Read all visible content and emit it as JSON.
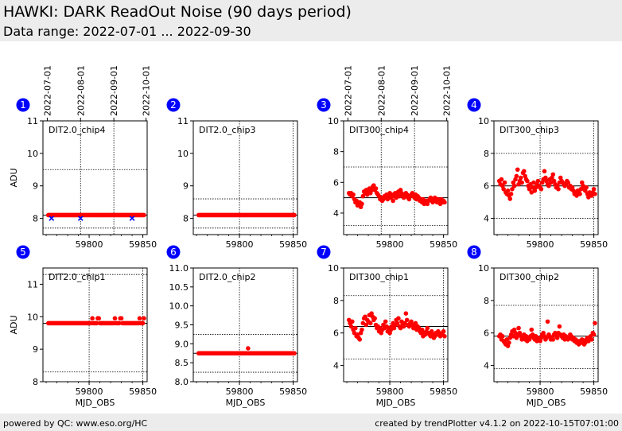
{
  "header": {
    "title": "HAWKI: DARK ReadOut Noise (90 days period)",
    "subtitle": "Data range: 2022-07-01 ... 2022-09-30"
  },
  "footer": {
    "left": "powered by QC: www.eso.org/HC",
    "right": "created by trendPlotter v4.1.2 on 2022-10-15T07:01:00"
  },
  "colors": {
    "data": "#ff0000",
    "outlier": "#0000ff",
    "badge": "#0000ff",
    "header_bg": "#ececec"
  },
  "chart_data": [
    {
      "type": "scatter",
      "index": "1",
      "label": "DIT2.0_chip4",
      "ylabel": "ADU",
      "xlabel": "",
      "xlim": [
        59757,
        59854
      ],
      "ylim": [
        7.5,
        11
      ],
      "yticks": [
        "8",
        "9",
        "10",
        "11"
      ],
      "xticks": [
        "59800",
        "59850"
      ],
      "date_ticks": [
        "2022-07-01",
        "2022-08-01",
        "2022-09-01",
        "2022-10-01"
      ],
      "reference_line": 8.1,
      "threshold_lines": [
        9.5,
        7.7
      ],
      "series": [
        {
          "start": 59762,
          "end": 59851,
          "values": [
            8.1,
            8.1,
            8.1,
            8.1,
            8.1,
            8.1,
            8.1,
            8.1,
            8.1,
            8.1,
            8.1,
            8.1,
            8.1,
            8.1,
            8.1,
            8.1,
            8.1,
            8.1,
            8.1,
            8.1,
            8.1,
            8.1,
            8.1,
            8.1,
            8.1,
            8.1,
            8.1,
            8.1,
            8.1,
            8.1,
            8.1,
            8.1,
            8.1,
            8.1,
            8.1,
            8.1,
            8.1,
            8.1,
            8.1,
            8.1,
            8.1,
            8.1,
            8.1,
            8.1,
            8.1,
            8.1,
            8.1,
            8.1,
            8.1,
            8.1,
            8.1,
            8.1,
            8.1,
            8.1,
            8.1,
            8.1,
            8.1,
            8.1,
            8.1,
            8.1,
            8.1,
            8.1,
            8.1,
            8.1,
            8.1,
            8.1,
            8.1,
            8.1,
            8.1,
            8.1,
            8.1,
            8.1,
            8.1,
            8.1,
            8.1,
            8.1,
            8.1,
            8.1,
            8.1,
            8.1,
            8.1,
            8.1,
            8.1,
            8.1,
            8.1,
            8.1,
            8.1,
            8.1,
            8.1,
            8.1
          ]
        }
      ],
      "outliers": [
        {
          "x": 59765,
          "y": 8.0
        },
        {
          "x": 59792,
          "y": 8.0
        },
        {
          "x": 59840,
          "y": 8.0
        }
      ]
    },
    {
      "type": "scatter",
      "index": "2",
      "label": "DIT2.0_chip3",
      "ylabel": "",
      "xlabel": "",
      "xlim": [
        59757,
        59854
      ],
      "ylim": [
        7.5,
        11
      ],
      "yticks": [
        "8",
        "9",
        "10",
        "11"
      ],
      "xticks": [
        "59800",
        "59850"
      ],
      "reference_line": 8.1,
      "threshold_lines": [
        8.6,
        7.7
      ],
      "series": [
        {
          "start": 59762,
          "end": 59851,
          "values": [
            8.1,
            8.1,
            8.1,
            8.1,
            8.1,
            8.1,
            8.1,
            8.1,
            8.1,
            8.1,
            8.1,
            8.1,
            8.1,
            8.1,
            8.1,
            8.1,
            8.1,
            8.1,
            8.1,
            8.1,
            8.1,
            8.1,
            8.1,
            8.1,
            8.1,
            8.1,
            8.1,
            8.1,
            8.1,
            8.1,
            8.1,
            8.1,
            8.1,
            8.1,
            8.1,
            8.1,
            8.1,
            8.1,
            8.1,
            8.1,
            8.1,
            8.1,
            8.1,
            8.1,
            8.1,
            8.1,
            8.1,
            8.1,
            8.1,
            8.1,
            8.1,
            8.1,
            8.1,
            8.1,
            8.1,
            8.1,
            8.1,
            8.1,
            8.1,
            8.1,
            8.1,
            8.1,
            8.1,
            8.1,
            8.1,
            8.1,
            8.1,
            8.1,
            8.1,
            8.1,
            8.1,
            8.1,
            8.1,
            8.1,
            8.1,
            8.1,
            8.1,
            8.1,
            8.1,
            8.1,
            8.1,
            8.1,
            8.1,
            8.1,
            8.1,
            8.1,
            8.1,
            8.1,
            8.1,
            8.1
          ]
        }
      ],
      "outliers": []
    },
    {
      "type": "scatter",
      "index": "3",
      "label": "DIT300_chip4",
      "ylabel": "",
      "xlabel": "",
      "xlim": [
        59757,
        59854
      ],
      "ylim": [
        2.6,
        10
      ],
      "yticks": [
        "4",
        "6",
        "8",
        "10"
      ],
      "xticks": [
        "59800",
        "59850"
      ],
      "date_ticks": [
        "2022-07-01",
        "2022-08-01",
        "2022-09-01",
        "2022-10-01"
      ],
      "reference_line": 5.0,
      "threshold_lines": [
        7.0,
        3.2
      ],
      "series": [
        {
          "start": 59762,
          "end": 59851,
          "values": [
            5.3,
            5.2,
            5.3,
            5.1,
            5.2,
            4.9,
            4.7,
            4.8,
            4.5,
            4.6,
            4.7,
            4.4,
            4.6,
            5.1,
            5.4,
            5.3,
            5.5,
            5.2,
            5.4,
            5.6,
            5.3,
            5.5,
            5.7,
            5.8,
            5.5,
            5.6,
            5.3,
            5.2,
            5.1,
            4.9,
            5.0,
            4.8,
            4.9,
            5.1,
            5.0,
            5.2,
            4.9,
            5.1,
            5.3,
            5.0,
            5.2,
            4.8,
            5.1,
            5.3,
            5.0,
            5.2,
            5.4,
            5.1,
            5.5,
            5.3,
            5.2,
            5.0,
            5.1,
            5.3,
            5.2,
            5.0,
            4.9,
            5.1,
            5.2,
            5.3,
            5.1,
            5.0,
            5.2,
            4.9,
            5.1,
            5.0,
            4.8,
            4.9,
            4.7,
            4.9,
            4.6,
            4.7,
            4.8,
            4.6,
            4.8,
            4.9,
            5.0,
            4.8,
            4.7,
            4.9,
            5.0,
            4.8,
            4.7,
            4.9,
            4.8,
            4.6,
            4.9,
            4.7,
            4.8,
            4.7
          ]
        }
      ],
      "outliers": []
    },
    {
      "type": "scatter",
      "index": "4",
      "label": "DIT300_chip3",
      "ylabel": "",
      "xlabel": "",
      "xlim": [
        59757,
        59854
      ],
      "ylim": [
        3,
        10
      ],
      "yticks": [
        "4",
        "6",
        "8",
        "10"
      ],
      "xticks": [
        "59800",
        "59850"
      ],
      "reference_line": 6.0,
      "threshold_lines": [
        8.0,
        4.0
      ],
      "series": [
        {
          "start": 59762,
          "end": 59851,
          "values": [
            6.3,
            6.1,
            6.4,
            6.0,
            5.8,
            6.2,
            5.6,
            5.5,
            5.7,
            5.4,
            5.2,
            5.5,
            5.8,
            6.2,
            6.0,
            6.4,
            6.6,
            7.0,
            6.1,
            6.3,
            6.5,
            6.2,
            6.8,
            6.9,
            6.6,
            6.4,
            6.3,
            6.0,
            5.8,
            6.1,
            5.6,
            5.9,
            6.2,
            5.7,
            5.9,
            6.1,
            6.3,
            6.0,
            5.9,
            5.8,
            6.2,
            6.4,
            6.9,
            6.5,
            6.3,
            6.1,
            6.0,
            6.4,
            6.2,
            6.5,
            6.7,
            6.3,
            6.1,
            5.9,
            6.0,
            5.8,
            6.2,
            6.5,
            6.3,
            6.2,
            6.1,
            6.0,
            6.1,
            6.3,
            6.2,
            5.9,
            6.0,
            5.8,
            5.9,
            5.7,
            5.5,
            5.6,
            5.4,
            5.7,
            5.6,
            5.5,
            5.8,
            6.2,
            6.0,
            5.8,
            5.7,
            5.9,
            5.5,
            5.3,
            5.6,
            5.5,
            5.4,
            5.6,
            5.8,
            5.5
          ]
        }
      ],
      "outliers": []
    },
    {
      "type": "scatter",
      "index": "5",
      "label": "DIT2.0_chip1",
      "ylabel": "ADU",
      "xlabel": "MJD_OBS",
      "xlim": [
        59757,
        59854
      ],
      "ylim": [
        8,
        11.5
      ],
      "yticks": [
        "8",
        "9",
        "10",
        "11"
      ],
      "xticks": [
        "59800",
        "59850"
      ],
      "reference_line": 9.8,
      "threshold_lines": [
        11.3,
        8.3
      ],
      "series": [
        {
          "start": 59762,
          "end": 59851,
          "values": [
            9.8,
            9.8,
            9.8,
            9.8,
            9.8,
            9.8,
            9.8,
            9.8,
            9.8,
            9.8,
            9.8,
            9.8,
            9.8,
            9.8,
            9.8,
            9.8,
            9.8,
            9.8,
            9.8,
            9.8,
            9.8,
            9.8,
            9.8,
            9.8,
            9.8,
            9.8,
            9.8,
            9.8,
            9.8,
            9.8,
            9.8,
            9.8,
            9.8,
            9.8,
            9.8,
            9.8,
            9.8,
            9.8,
            9.8,
            9.8,
            9.8,
            9.95,
            9.8,
            9.8,
            9.8,
            9.8,
            9.95,
            9.95,
            9.8,
            9.8,
            9.8,
            9.8,
            9.8,
            9.8,
            9.8,
            9.8,
            9.8,
            9.8,
            9.8,
            9.8,
            9.8,
            9.8,
            9.95,
            9.8,
            9.8,
            9.8,
            9.8,
            9.95,
            9.95,
            9.8,
            9.8,
            9.8,
            9.8,
            9.8,
            9.8,
            9.8,
            9.8,
            9.8,
            9.8,
            9.8,
            9.8,
            9.8,
            9.8,
            9.8,
            9.8,
            9.95,
            9.8,
            9.8,
            9.8,
            9.95
          ]
        }
      ],
      "outliers": []
    },
    {
      "type": "scatter",
      "index": "6",
      "label": "DIT2.0_chip2",
      "ylabel": "",
      "xlabel": "MJD_OBS",
      "xlim": [
        59757,
        59854
      ],
      "ylim": [
        8.0,
        11.0
      ],
      "yticks": [
        "8.0",
        "8.5",
        "9.0",
        "9.5",
        "10.0",
        "10.5",
        "11.0"
      ],
      "xticks": [
        "59800",
        "59850"
      ],
      "reference_line": 8.75,
      "threshold_lines": [
        9.25,
        8.25
      ],
      "series": [
        {
          "start": 59762,
          "end": 59851,
          "values": [
            8.75,
            8.75,
            8.75,
            8.75,
            8.75,
            8.75,
            8.75,
            8.75,
            8.75,
            8.75,
            8.75,
            8.75,
            8.75,
            8.75,
            8.75,
            8.75,
            8.75,
            8.75,
            8.75,
            8.75,
            8.75,
            8.75,
            8.75,
            8.75,
            8.75,
            8.75,
            8.75,
            8.75,
            8.75,
            8.75,
            8.75,
            8.75,
            8.75,
            8.75,
            8.75,
            8.75,
            8.75,
            8.75,
            8.75,
            8.75,
            8.75,
            8.75,
            8.75,
            8.75,
            8.75,
            8.75,
            8.88,
            8.75,
            8.75,
            8.75,
            8.75,
            8.75,
            8.75,
            8.75,
            8.75,
            8.75,
            8.75,
            8.75,
            8.75,
            8.75,
            8.75,
            8.75,
            8.75,
            8.75,
            8.75,
            8.75,
            8.75,
            8.75,
            8.75,
            8.75,
            8.75,
            8.75,
            8.75,
            8.75,
            8.75,
            8.75,
            8.75,
            8.75,
            8.75,
            8.75,
            8.75,
            8.75,
            8.75,
            8.75,
            8.75,
            8.75,
            8.75,
            8.75,
            8.75,
            8.75
          ]
        }
      ],
      "outliers": []
    },
    {
      "type": "scatter",
      "index": "7",
      "label": "DIT300_chip1",
      "ylabel": "",
      "xlabel": "MJD_OBS",
      "xlim": [
        59757,
        59854
      ],
      "ylim": [
        3,
        10
      ],
      "yticks": [
        "4",
        "6",
        "8",
        "10"
      ],
      "xticks": [
        "59800",
        "59850"
      ],
      "reference_line": 6.4,
      "threshold_lines": [
        8.3,
        4.4
      ],
      "series": [
        {
          "start": 59762,
          "end": 59851,
          "values": [
            6.8,
            6.6,
            6.4,
            6.7,
            6.2,
            6.0,
            6.3,
            5.8,
            5.9,
            5.7,
            5.6,
            6.0,
            6.2,
            6.6,
            6.9,
            7.0,
            6.5,
            6.8,
            6.7,
            7.1,
            6.6,
            7.2,
            7.0,
            6.8,
            6.9,
            6.5,
            6.3,
            6.4,
            6.1,
            6.3,
            6.0,
            6.2,
            6.5,
            6.3,
            6.7,
            6.4,
            6.1,
            6.3,
            6.0,
            6.2,
            6.4,
            6.6,
            6.3,
            6.5,
            6.8,
            6.6,
            6.9,
            6.4,
            6.3,
            6.7,
            6.5,
            6.4,
            6.6,
            7.2,
            6.8,
            6.5,
            6.4,
            6.6,
            6.7,
            6.5,
            6.3,
            6.4,
            6.6,
            6.2,
            6.4,
            6.3,
            6.1,
            6.0,
            6.2,
            5.8,
            6.0,
            5.9,
            6.1,
            6.3,
            6.0,
            5.9,
            5.8,
            6.1,
            5.9,
            5.7,
            5.8,
            6.0,
            5.9,
            6.1,
            6.0,
            5.8,
            5.9,
            6.0,
            6.1,
            5.8
          ]
        }
      ],
      "outliers": []
    },
    {
      "type": "scatter",
      "index": "8",
      "label": "DIT300_chip2",
      "ylabel": "",
      "xlabel": "MJD_OBS",
      "xlim": [
        59757,
        59854
      ],
      "ylim": [
        3,
        10
      ],
      "yticks": [
        "4",
        "6",
        "8",
        "10"
      ],
      "xticks": [
        "59800",
        "59850"
      ],
      "reference_line": 5.8,
      "threshold_lines": [
        7.7,
        3.8
      ],
      "series": [
        {
          "start": 59762,
          "end": 59851,
          "values": [
            5.8,
            5.9,
            5.6,
            5.8,
            5.5,
            5.4,
            5.3,
            5.6,
            5.2,
            5.4,
            5.7,
            5.9,
            6.1,
            5.8,
            6.2,
            6.0,
            5.7,
            5.9,
            6.3,
            6.0,
            5.8,
            5.6,
            5.7,
            5.9,
            5.6,
            5.8,
            5.5,
            5.7,
            5.6,
            5.8,
            6.2,
            5.9,
            5.7,
            5.6,
            5.8,
            5.5,
            5.7,
            5.6,
            5.5,
            5.7,
            5.9,
            6.0,
            5.8,
            5.6,
            5.7,
            6.7,
            5.9,
            5.8,
            5.6,
            5.7,
            5.6,
            5.9,
            6.0,
            5.8,
            5.7,
            6.0,
            6.4,
            5.9,
            5.8,
            5.7,
            5.9,
            5.6,
            5.8,
            5.7,
            5.6,
            5.7,
            5.9,
            5.8,
            5.6,
            5.7,
            5.5,
            5.6,
            5.4,
            5.5,
            5.3,
            5.5,
            5.4,
            5.6,
            5.5,
            5.3,
            5.4,
            5.6,
            5.7,
            5.5,
            5.6,
            5.8,
            5.6,
            6.0,
            5.9,
            6.6
          ]
        }
      ],
      "outliers": []
    }
  ]
}
